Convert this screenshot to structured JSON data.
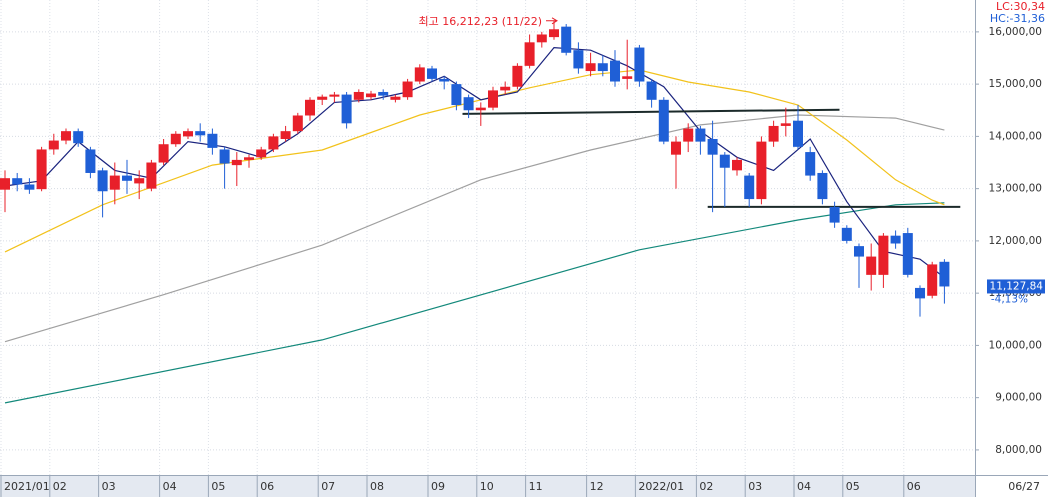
{
  "chart_data": {
    "type": "candlestick",
    "categories": [
      "2021/01",
      null,
      null,
      null,
      "02",
      null,
      null,
      null,
      "03",
      null,
      null,
      null,
      null,
      "04",
      null,
      null,
      null,
      "05",
      null,
      null,
      null,
      "06",
      null,
      null,
      null,
      null,
      "07",
      null,
      null,
      null,
      "08",
      null,
      null,
      null,
      null,
      "09",
      null,
      null,
      null,
      "10",
      null,
      null,
      null,
      "11",
      null,
      null,
      null,
      null,
      "12",
      null,
      null,
      null,
      "2022/01",
      null,
      null,
      null,
      null,
      "02",
      null,
      null,
      null,
      "03",
      null,
      null,
      null,
      "04",
      null,
      null,
      null,
      "05",
      null,
      null,
      null,
      null,
      "06",
      null,
      null,
      null
    ],
    "open": [
      12980,
      13200,
      13080,
      12990,
      13750,
      13920,
      14100,
      13750,
      13350,
      12980,
      13250,
      13100,
      13000,
      13500,
      13850,
      14000,
      14100,
      14050,
      13750,
      13450,
      13550,
      13600,
      13750,
      13950,
      14100,
      14400,
      14700,
      14760,
      14800,
      14700,
      14750,
      14850,
      14700,
      14750,
      15050,
      15300,
      15100,
      15000,
      14750,
      14500,
      14550,
      14880,
      14950,
      15350,
      15800,
      15900,
      16100,
      15650,
      15250,
      15400,
      15450,
      15100,
      15700,
      15050,
      14700,
      13650,
      13900,
      14150,
      13950,
      13650,
      13350,
      13250,
      12800,
      13900,
      14200,
      14300,
      13700,
      13300,
      12650,
      12250,
      11900,
      11350,
      11350,
      12100,
      12150,
      11100,
      10950,
      11600
    ],
    "high": [
      13350,
      13300,
      13200,
      13800,
      14050,
      14150,
      14150,
      13800,
      13400,
      13500,
      13550,
      13350,
      13550,
      13950,
      14100,
      14150,
      14250,
      14150,
      13800,
      13700,
      13650,
      13800,
      14050,
      14200,
      14450,
      14750,
      14800,
      14850,
      14850,
      14900,
      14870,
      14900,
      14800,
      15100,
      15380,
      15350,
      15150,
      15050,
      14800,
      14650,
      14950,
      15050,
      15400,
      15950,
      16000,
      16212.23,
      16150,
      15800,
      15600,
      15550,
      15650,
      15850,
      15750,
      15100,
      14750,
      14000,
      14250,
      14200,
      14300,
      13700,
      13600,
      13300,
      14000,
      14300,
      14550,
      14600,
      13800,
      13350,
      12750,
      12300,
      11950,
      11950,
      12150,
      12200,
      12250,
      11150,
      11600,
      11650
    ],
    "low": [
      12550,
      12950,
      12900,
      12950,
      13650,
      13850,
      13800,
      13200,
      12450,
      12700,
      12900,
      12800,
      12950,
      13450,
      13800,
      13950,
      13900,
      13650,
      13000,
      13050,
      13400,
      13550,
      13700,
      13900,
      14050,
      14300,
      14600,
      14650,
      14150,
      14650,
      14700,
      14700,
      14650,
      14700,
      15000,
      15050,
      14900,
      14500,
      14350,
      14200,
      14500,
      14800,
      14900,
      15300,
      15700,
      15850,
      15550,
      15200,
      15150,
      15150,
      14950,
      14900,
      14950,
      14550,
      13850,
      13000,
      13700,
      13650,
      12550,
      12650,
      13250,
      12650,
      12700,
      13800,
      14000,
      13750,
      13150,
      12700,
      12250,
      11950,
      11100,
      11050,
      11100,
      11850,
      11300,
      10550,
      10900,
      10800
    ],
    "close": [
      13200,
      13080,
      12980,
      13750,
      13920,
      14100,
      13870,
      13300,
      12950,
      13250,
      13150,
      13200,
      13500,
      13850,
      14050,
      14100,
      14020,
      13780,
      13480,
      13550,
      13600,
      13750,
      14000,
      14100,
      14400,
      14700,
      14760,
      14800,
      14250,
      14850,
      14820,
      14780,
      14760,
      15050,
      15320,
      15100,
      15050,
      14600,
      14500,
      14550,
      14880,
      14950,
      15350,
      15800,
      15950,
      16050,
      15600,
      15300,
      15400,
      15250,
      15050,
      15150,
      15050,
      14700,
      13900,
      13900,
      14150,
      13900,
      13650,
      13400,
      13550,
      12800,
      13900,
      14200,
      14250,
      13800,
      13250,
      12800,
      12350,
      12000,
      11700,
      11700,
      12100,
      11950,
      11350,
      10900,
      11550,
      11127.84
    ],
    "up_color": "#e8202a",
    "down_color": "#1f5fd6",
    "overlays": [
      {
        "color": "#13897b",
        "x": [
          0,
          26,
          52,
          65,
          73,
          77
        ],
        "values": [
          8900,
          10105,
          11830,
          12400,
          12690,
          12730
        ]
      },
      {
        "color": "#a0a0a0",
        "x": [
          0,
          13,
          26,
          39,
          48,
          57,
          65,
          73,
          77
        ],
        "values": [
          10070,
          10970,
          11920,
          13170,
          13740,
          14220,
          14410,
          14350,
          14120
        ]
      },
      {
        "color": "#f2c21b",
        "x": [
          0,
          8,
          17,
          26,
          34,
          43,
          48,
          52,
          56,
          61,
          65,
          69,
          73,
          76,
          77
        ],
        "values": [
          11790,
          12690,
          13450,
          13740,
          14410,
          14930,
          15180,
          15270,
          15040,
          14850,
          14600,
          13930,
          13170,
          12780,
          12690
        ]
      },
      {
        "color": "#1a237e",
        "x": [
          0,
          3,
          6,
          9,
          12,
          15,
          18,
          21,
          24,
          27,
          30,
          33,
          36,
          39,
          42,
          45,
          48,
          51,
          54,
          57,
          60,
          63,
          66,
          69,
          72,
          75,
          77
        ],
        "values": [
          13050,
          13150,
          13900,
          13350,
          13200,
          13900,
          13800,
          13600,
          14050,
          14650,
          14700,
          14850,
          15150,
          14700,
          14850,
          15700,
          15650,
          15350,
          14950,
          14100,
          13600,
          13350,
          13950,
          12750,
          11800,
          11650,
          11300
        ]
      }
    ],
    "trend_lines": [
      {
        "color": "#1b2a2a",
        "x": [
          37.5,
          68.4
        ],
        "values": [
          14430,
          14510
        ]
      },
      {
        "color": "#1b2a2a",
        "x": [
          57.6,
          78.3
        ],
        "values": [
          12650,
          12650
        ]
      }
    ],
    "ylim": [
      7520,
      16610
    ],
    "yticks": [
      {
        "value": 8000,
        "label": "8,000,00"
      },
      {
        "value": 9000,
        "label": "9,000,00"
      },
      {
        "value": 10000,
        "label": "10,000,00"
      },
      {
        "value": 11000,
        "label": "11,000,00"
      },
      {
        "value": 12000,
        "label": "12,000,00"
      },
      {
        "value": 13000,
        "label": "13,000,00"
      },
      {
        "value": 14000,
        "label": "14,000,00"
      },
      {
        "value": 15000,
        "label": "15,000,00"
      },
      {
        "value": 16000,
        "label": "16,000,00"
      }
    ],
    "grid": true,
    "high_annotation": {
      "value": 16212.23,
      "label": "최고 16,212,23 (11/22)"
    },
    "last_price": {
      "value": 11127.84,
      "label": "11,127,84"
    },
    "change": {
      "value": -4.13,
      "label": "-4,13%"
    },
    "lc_label": "LC:30,34",
    "hc_label": "HC:-31,36",
    "last_date": "06/27"
  }
}
